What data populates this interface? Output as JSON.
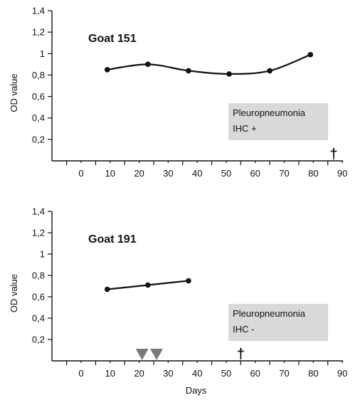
{
  "colors": {
    "axis": "#111111",
    "line": "#111111",
    "box": "#d9d9d9",
    "marker_triangle": "#7a7a7a"
  },
  "icons": {
    "death": "dagger-icon",
    "treatment": "triangle-down-icon"
  },
  "chart_data": [
    {
      "type": "line",
      "title": "Goat 151",
      "xlabel": "",
      "ylabel": "OD value",
      "xlim": [
        -10,
        92
      ],
      "ylim": [
        0,
        1.4
      ],
      "x_ticks": [
        0,
        10,
        20,
        30,
        40,
        50,
        60,
        70,
        80,
        90
      ],
      "x_ticklabels": [
        "0",
        "10",
        "20",
        "30",
        "40",
        "50",
        "60",
        "70",
        "80",
        "90"
      ],
      "y_ticks": [
        0.2,
        0.4,
        0.6,
        0.8,
        1.0,
        1.2,
        1.4
      ],
      "y_ticklabels": [
        "0,2",
        "0,4",
        "0,6",
        "0,8",
        "1",
        "1,2",
        "1,4"
      ],
      "grid": false,
      "series": [
        {
          "x": [
            9,
            23,
            37,
            51,
            65,
            79
          ],
          "values": [
            0.85,
            0.9,
            0.84,
            0.81,
            0.84,
            0.99
          ]
        }
      ],
      "annotation_box": {
        "lines": [
          "Pleuropneumonia",
          "IHC +"
        ]
      },
      "death_day": 87,
      "death_symbol": "†",
      "treatment_days": []
    },
    {
      "type": "line",
      "title": "Goat 191",
      "xlabel": "Days",
      "ylabel": "OD value",
      "xlim": [
        -10,
        92
      ],
      "ylim": [
        0,
        1.4
      ],
      "x_ticks": [
        0,
        10,
        20,
        30,
        40,
        50,
        60,
        70,
        80,
        90
      ],
      "x_ticklabels": [
        "0",
        "10",
        "20",
        "30",
        "40",
        "50",
        "60",
        "70",
        "80",
        "90"
      ],
      "y_ticks": [
        0.2,
        0.4,
        0.6,
        0.8,
        1.0,
        1.2,
        1.4
      ],
      "y_ticklabels": [
        "0,2",
        "0,4",
        "0,6",
        "0,8",
        "1",
        "1,2",
        "1,4"
      ],
      "grid": false,
      "series": [
        {
          "x": [
            9,
            23,
            37
          ],
          "values": [
            0.67,
            0.71,
            0.75
          ]
        }
      ],
      "annotation_box": {
        "lines": [
          "Pleuropneumonia",
          "IHC -"
        ]
      },
      "death_day": 55,
      "death_symbol": "†",
      "treatment_days": [
        21,
        26
      ]
    }
  ]
}
